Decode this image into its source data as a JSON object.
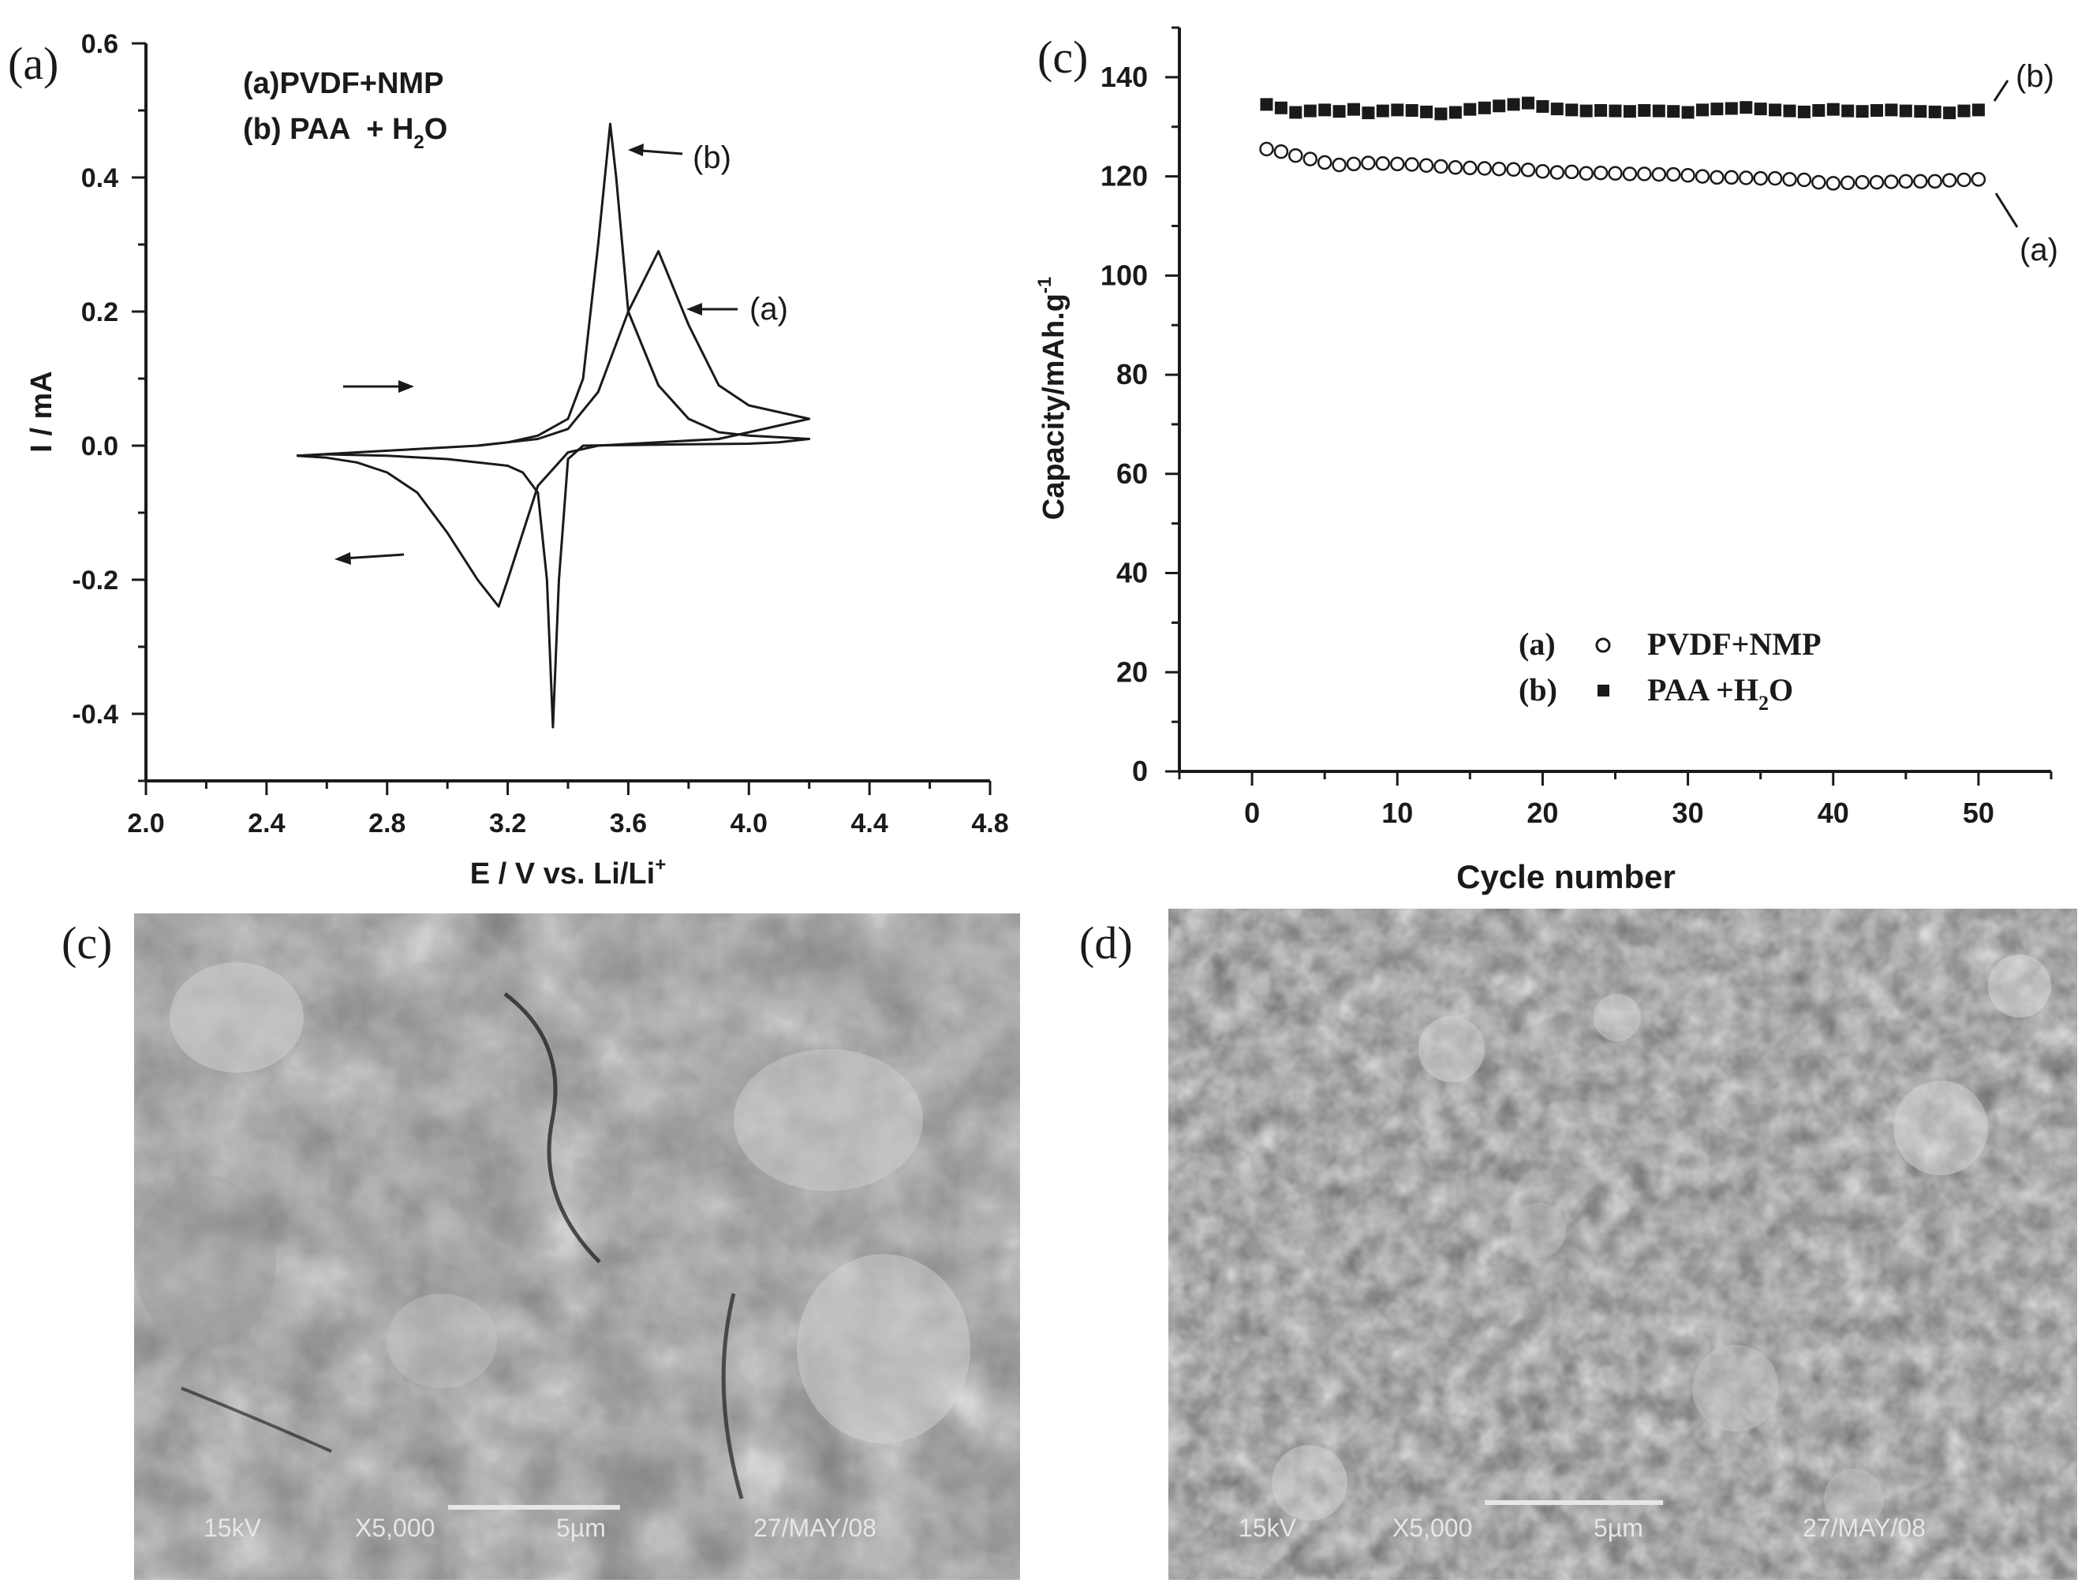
{
  "colors": {
    "background": "#ffffff",
    "ink": "#1a1a1a",
    "sem_dark": "#2e2e2e",
    "sem_mid": "#6a6a6a",
    "sem_light": "#b9b9b9",
    "scale_text": "#e6e6e6"
  },
  "chart_data": [
    {
      "panel_label": "(a)",
      "type": "line",
      "title": "",
      "xlabel": "E / V vs. Li/Li",
      "xlabel_sup": "+",
      "ylabel": "I / mA",
      "xlim": [
        2.0,
        4.8
      ],
      "ylim": [
        -0.5,
        0.6
      ],
      "xticks": [
        2.0,
        2.4,
        2.8,
        3.2,
        3.6,
        4.0,
        4.4,
        4.8
      ],
      "xtick_labels": [
        "2.0",
        "2.4",
        "2.8",
        "3.2",
        "3.6",
        "4.0",
        "4.4",
        "4.8"
      ],
      "yticks": [
        -0.4,
        -0.2,
        0.0,
        0.2,
        0.4,
        0.6
      ],
      "ytick_labels": [
        "-0.4",
        "-0.2",
        "0.0",
        "0.2",
        "0.4",
        "0.6"
      ],
      "grid": false,
      "legend": {
        "position": "top-left",
        "line1": "(a)PVDF+NMP",
        "line2_prefix": "(b) PAA  + H",
        "line2_sub": "2",
        "line2_suffix": "O"
      },
      "annotations": {
        "peak_b": "(b)",
        "peak_a": "(a)"
      },
      "series": [
        {
          "name": "(a)",
          "x": [
            2.5,
            2.7,
            2.9,
            3.1,
            3.3,
            3.4,
            3.5,
            3.6,
            3.7,
            3.8,
            3.9,
            4.0,
            4.1,
            4.2,
            4.2,
            4.1,
            4.0,
            3.9,
            3.7,
            3.5,
            3.4,
            3.3,
            3.2,
            3.17,
            3.1,
            3.0,
            2.9,
            2.8,
            2.7,
            2.6,
            2.5
          ],
          "y": [
            -0.015,
            -0.01,
            -0.005,
            0.0,
            0.01,
            0.025,
            0.08,
            0.2,
            0.29,
            0.18,
            0.09,
            0.06,
            0.05,
            0.04,
            0.04,
            0.03,
            0.02,
            0.01,
            0.005,
            0.0,
            -0.01,
            -0.06,
            -0.2,
            -0.24,
            -0.2,
            -0.13,
            -0.07,
            -0.04,
            -0.025,
            -0.018,
            -0.015
          ]
        },
        {
          "name": "(b)",
          "x": [
            3.1,
            3.2,
            3.3,
            3.4,
            3.45,
            3.5,
            3.54,
            3.56,
            3.6,
            3.7,
            3.8,
            3.9,
            4.0,
            4.2,
            4.2,
            4.1,
            4.0,
            3.8,
            3.6,
            3.45,
            3.4,
            3.37,
            3.35,
            3.33,
            3.3,
            3.25,
            3.2,
            3.0,
            2.8,
            2.6,
            2.5
          ],
          "y": [
            0.0,
            0.005,
            0.015,
            0.04,
            0.1,
            0.3,
            0.48,
            0.4,
            0.2,
            0.09,
            0.04,
            0.02,
            0.015,
            0.01,
            0.01,
            0.005,
            0.003,
            0.002,
            0.001,
            0.0,
            -0.02,
            -0.2,
            -0.42,
            -0.2,
            -0.07,
            -0.04,
            -0.03,
            -0.02,
            -0.015,
            -0.013,
            -0.015
          ]
        }
      ]
    },
    {
      "panel_label": "(c)",
      "type": "scatter",
      "title": "",
      "xlabel": "Cycle number",
      "ylabel": "Capacity/mAh.g",
      "ylabel_sup": "-1",
      "xlim": [
        -5,
        55
      ],
      "ylim": [
        0,
        150
      ],
      "xticks": [
        0,
        10,
        20,
        30,
        40,
        50
      ],
      "xtick_labels": [
        "0",
        "10",
        "20",
        "30",
        "40",
        "50"
      ],
      "yticks": [
        0,
        20,
        40,
        60,
        80,
        100,
        120,
        140
      ],
      "ytick_labels": [
        "0",
        "20",
        "40",
        "60",
        "80",
        "100",
        "120",
        "140"
      ],
      "grid": false,
      "legend": {
        "position": "bottom-right",
        "row_a_label": "(a)",
        "row_a_name": "PVDF+NMP",
        "row_b_label": "(b)",
        "row_b_prefix": "PAA +H",
        "row_b_sub": "2",
        "row_b_suffix": "O"
      },
      "annotations": {
        "series_b": "(b)",
        "series_a": "(a)"
      },
      "series": [
        {
          "name": "PVDF+NMP",
          "marker": "open-circle",
          "x": [
            1,
            2,
            3,
            4,
            5,
            6,
            7,
            8,
            9,
            10,
            11,
            12,
            13,
            14,
            15,
            16,
            17,
            18,
            19,
            20,
            21,
            22,
            23,
            24,
            25,
            26,
            27,
            28,
            29,
            30,
            31,
            32,
            33,
            34,
            35,
            36,
            37,
            38,
            39,
            40,
            41,
            42,
            43,
            44,
            45,
            46,
            47,
            48,
            49,
            50
          ],
          "y": [
            125.5,
            125,
            124.2,
            123.5,
            122.8,
            122.3,
            122.5,
            122.7,
            122.6,
            122.5,
            122.4,
            122.2,
            122,
            121.8,
            121.7,
            121.6,
            121.5,
            121.4,
            121.3,
            121,
            120.8,
            120.9,
            120.6,
            120.7,
            120.6,
            120.5,
            120.5,
            120.4,
            120.4,
            120.2,
            120,
            119.8,
            119.8,
            119.7,
            119.6,
            119.6,
            119.4,
            119.3,
            118.8,
            118.6,
            118.7,
            118.8,
            118.8,
            118.9,
            119,
            119,
            119,
            119.2,
            119.3,
            119.4
          ]
        },
        {
          "name": "PAA +H2O",
          "marker": "filled-square",
          "x": [
            1,
            2,
            3,
            4,
            5,
            6,
            7,
            8,
            9,
            10,
            11,
            12,
            13,
            14,
            15,
            16,
            17,
            18,
            19,
            20,
            21,
            22,
            23,
            24,
            25,
            26,
            27,
            28,
            29,
            30,
            31,
            32,
            33,
            34,
            35,
            36,
            37,
            38,
            39,
            40,
            41,
            42,
            43,
            44,
            45,
            46,
            47,
            48,
            49,
            50
          ],
          "y": [
            134.5,
            133.8,
            132.9,
            133.2,
            133.4,
            133.1,
            133.5,
            132.8,
            133.2,
            133.4,
            133.3,
            133,
            132.6,
            132.9,
            133.5,
            133.8,
            134.2,
            134.5,
            134.8,
            134.1,
            133.6,
            133.4,
            133.2,
            133.3,
            133.2,
            133.1,
            133.3,
            133.2,
            133.1,
            132.9,
            133.4,
            133.6,
            133.7,
            133.9,
            133.6,
            133.4,
            133.2,
            133,
            133.3,
            133.5,
            133.2,
            133.1,
            133.3,
            133.4,
            133.2,
            133.1,
            133,
            132.8,
            133.2,
            133.4
          ]
        }
      ]
    }
  ],
  "sem_panels": [
    {
      "panel_label": "(c)",
      "voltage": "15kV",
      "magnification": "X5,000",
      "scale": "5µm",
      "date": "27/MAY/08"
    },
    {
      "panel_label": "(d)",
      "voltage": "15kV",
      "magnification": "X5,000",
      "scale": "5µm",
      "date": "27/MAY/08"
    }
  ]
}
